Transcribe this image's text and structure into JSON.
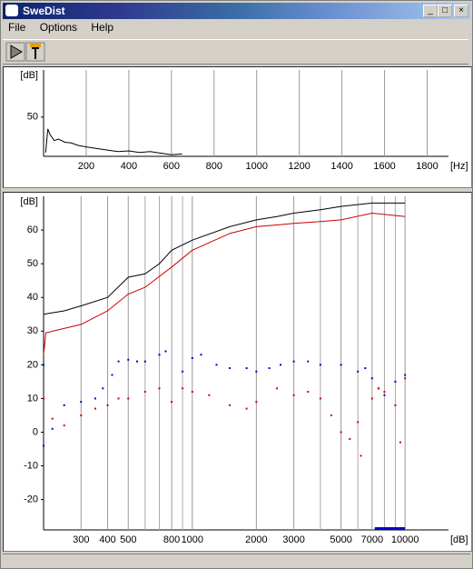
{
  "window": {
    "title": "SweDist",
    "menu": [
      "File",
      "Options",
      "Help"
    ]
  },
  "chart_data": [
    {
      "type": "line",
      "y_label": "[dB]",
      "x_label": "[Hz]",
      "xlim": [
        0,
        1900
      ],
      "xticks": [
        200,
        400,
        600,
        800,
        1000,
        1200,
        1400,
        1600,
        1800
      ],
      "ylim": [
        0,
        110
      ],
      "yticks": [
        50
      ],
      "grid": "x",
      "log_x": false,
      "series": [
        {
          "color": "#000000",
          "mode": "line",
          "x": [
            10,
            20,
            30,
            50,
            70,
            100,
            130,
            160,
            200,
            250,
            300,
            350,
            400,
            450,
            500,
            600,
            650
          ],
          "values": [
            5,
            35,
            28,
            20,
            22,
            18,
            17,
            14,
            12,
            10,
            8,
            6,
            7,
            5,
            6,
            2,
            3
          ]
        }
      ]
    },
    {
      "type": "line",
      "y_label": "[dB]",
      "x_label": "[dB]",
      "xlim": [
        200,
        16000
      ],
      "log_x": true,
      "xticks": [
        300,
        400,
        500,
        800,
        1000,
        2000,
        3000,
        5000,
        7000,
        10000
      ],
      "minor_xticks": [
        600,
        700,
        900,
        4000,
        6000,
        8000,
        9000
      ],
      "ylim": [
        -29,
        70
      ],
      "yticks": [
        60,
        50,
        40,
        30,
        20,
        10,
        0,
        -10,
        -20
      ],
      "grid": "x",
      "highlight_range": [
        7200,
        10000
      ],
      "highlight_color": "#0000cc",
      "series": [
        {
          "color": "#000000",
          "mode": "line",
          "x": [
            200,
            250,
            300,
            400,
            500,
            600,
            700,
            800,
            1000,
            1500,
            2000,
            2500,
            3000,
            4000,
            5000,
            7000,
            10000
          ],
          "values": [
            35,
            36,
            37.5,
            40,
            46,
            47,
            50,
            54,
            57,
            61,
            63,
            64,
            65,
            66,
            67,
            68,
            68
          ]
        },
        {
          "color": "#cc0000",
          "mode": "line",
          "x": [
            200,
            205,
            300,
            400,
            500,
            600,
            800,
            1000,
            1500,
            2000,
            2500,
            3000,
            4000,
            5000,
            7000,
            10000
          ],
          "values": [
            23,
            29.5,
            32,
            36,
            41,
            43,
            49,
            54,
            59,
            61,
            61.5,
            62,
            62.5,
            63,
            65,
            64
          ]
        },
        {
          "color": "#0000cc",
          "mode": "markers",
          "x": [
            200,
            200,
            220,
            250,
            300,
            350,
            380,
            420,
            450,
            500,
            550,
            600,
            700,
            750,
            900,
            1000,
            1100,
            1300,
            1500,
            1800,
            2000,
            2300,
            2600,
            3000,
            3500,
            4000,
            5000,
            6000,
            6500,
            7000,
            7500,
            8000,
            9000,
            10000
          ],
          "values": [
            -4,
            20,
            1,
            8,
            9,
            10,
            13,
            17,
            21,
            21.5,
            21,
            21,
            23,
            24,
            18,
            22,
            23,
            20,
            19,
            19,
            18,
            19,
            20,
            21,
            21,
            20,
            20,
            18,
            19,
            16,
            13,
            11,
            15,
            17
          ]
        },
        {
          "color": "#cc0000",
          "mode": "markers",
          "x": [
            200,
            220,
            250,
            300,
            350,
            400,
            450,
            500,
            600,
            700,
            800,
            900,
            1000,
            1200,
            1500,
            1800,
            2000,
            2500,
            3000,
            3500,
            4000,
            4500,
            5000,
            5500,
            6000,
            6200,
            7000,
            7500,
            8000,
            9000,
            9500,
            10000
          ],
          "values": [
            10,
            4,
            2,
            5,
            7,
            8,
            10,
            10,
            12,
            13,
            9,
            13,
            12,
            11,
            8,
            7,
            9,
            13,
            11,
            12,
            10,
            5,
            0,
            -2,
            3,
            -7,
            10,
            13,
            12,
            8,
            -3,
            16
          ]
        }
      ]
    }
  ]
}
